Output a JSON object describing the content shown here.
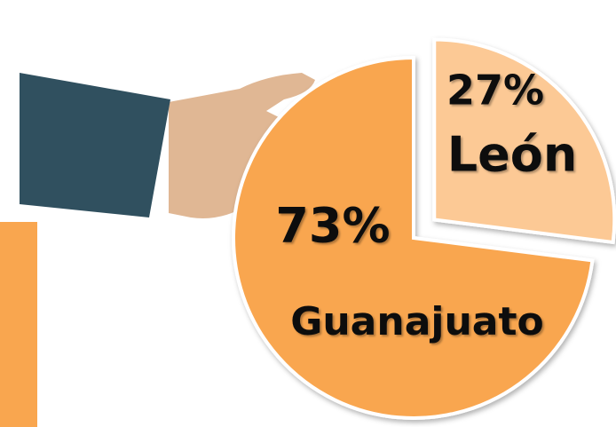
{
  "chart_data": {
    "type": "pie",
    "categories": [
      "León",
      "Guanajuato"
    ],
    "values": [
      27,
      73
    ],
    "value_labels": [
      "27%",
      "73%"
    ],
    "colors": [
      "#fcc995",
      "#f9a64f"
    ],
    "exploded": [
      true,
      false
    ]
  }
}
